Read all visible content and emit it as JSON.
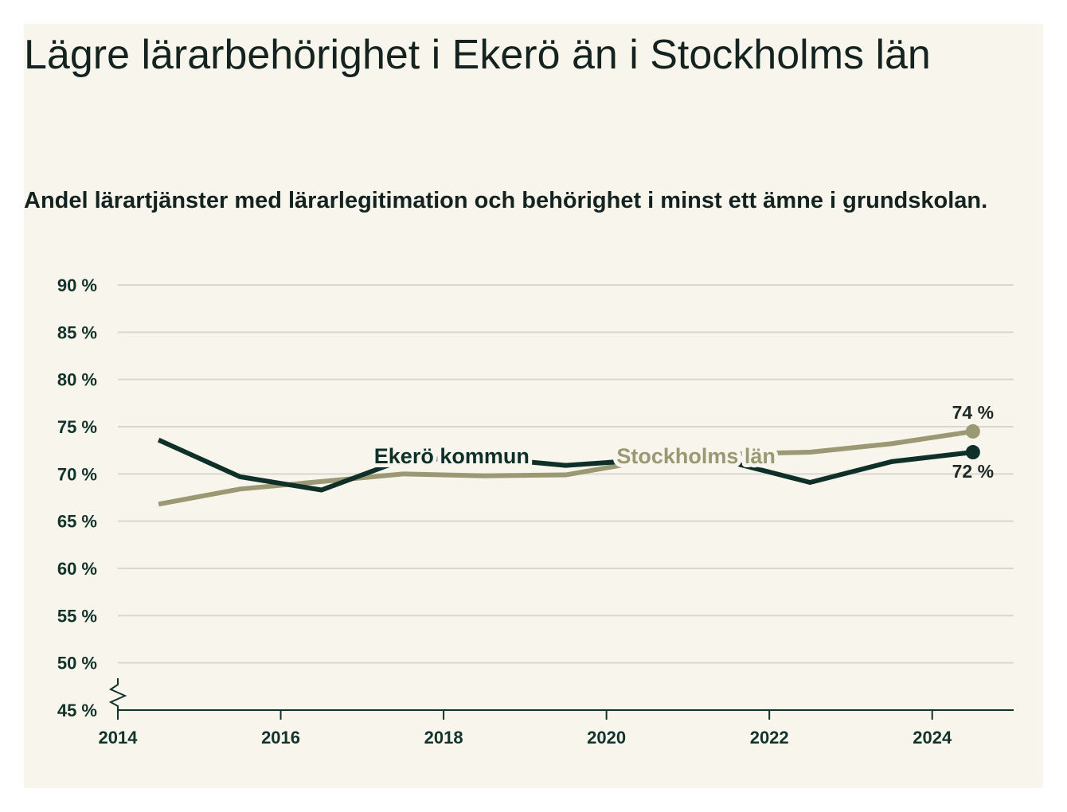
{
  "chart_data": {
    "type": "line",
    "title": "Lägre lärarbehörighet i Ekerö än i Stockholms län",
    "subtitle": "Andel lärartjänster med lärarlegitimation och behörighet i minst ett ämne i grundskolan.",
    "x_ticks": [
      "2014",
      "2016",
      "2018",
      "2020",
      "2022",
      "2024"
    ],
    "y_ticks": [
      "45 %",
      "50 %",
      "55 %",
      "60 %",
      "65 %",
      "70 %",
      "75 %",
      "80 %",
      "85 %",
      "90 %"
    ],
    "xlim": [
      2014,
      2025
    ],
    "ylim": [
      45,
      90
    ],
    "grid": true,
    "axis_break": true,
    "x": [
      2014.5,
      2015.5,
      2016.5,
      2017.5,
      2018.5,
      2019.5,
      2020.5,
      2021.5,
      2022.5,
      2023.5,
      2024.5
    ],
    "series": [
      {
        "name": "Ekerö kommun",
        "color": "#0f3028",
        "values": [
          73.6,
          69.7,
          68.3,
          71.5,
          71.7,
          70.9,
          71.5,
          71.3,
          69.1,
          71.3,
          72.3
        ],
        "end_label": "72 %",
        "label_year": 2018.1,
        "label_value": 71.9
      },
      {
        "name": "Stockholms län",
        "color": "#9b9874",
        "values": [
          66.8,
          68.4,
          69.2,
          70.0,
          69.8,
          69.9,
          71.4,
          72.1,
          72.3,
          73.2,
          74.5
        ],
        "end_label": "74 %",
        "label_year": 2021.1,
        "label_value": 71.9
      }
    ]
  }
}
